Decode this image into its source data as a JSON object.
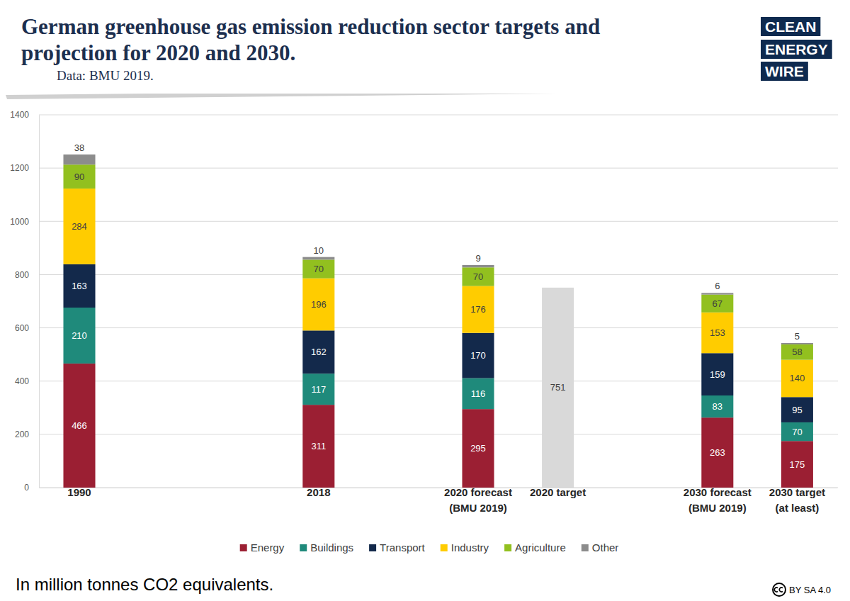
{
  "chart_data": {
    "type": "bar",
    "title": "German greenhouse gas emission reduction sector targets and\nprojection for 2020 and 2030.",
    "subtitle": "Data: BMU 2019.",
    "logo": [
      "CLEAN",
      "ENERGY",
      "WIRE"
    ],
    "note": "In million tonnes CO2 equivalents.",
    "license": "BY SA 4.0",
    "categories": [
      "1990",
      null,
      null,
      "2018",
      null,
      "2020 forecast\n(BMU 2019)",
      "2020 target",
      null,
      "2030 forecast\n(BMU 2019)",
      "2030 target\n(at least)"
    ],
    "series": [
      {
        "name": "Energy",
        "color": "#9b1f33",
        "values": [
          466,
          null,
          null,
          311,
          null,
          295,
          null,
          null,
          263,
          175
        ]
      },
      {
        "name": "Buildings",
        "color": "#1f8a7b",
        "values": [
          210,
          null,
          null,
          117,
          null,
          116,
          null,
          null,
          83,
          70
        ]
      },
      {
        "name": "Transport",
        "color": "#13294b",
        "values": [
          163,
          null,
          null,
          162,
          null,
          170,
          null,
          null,
          159,
          95
        ]
      },
      {
        "name": "Industry",
        "color": "#ffcc00",
        "values": [
          284,
          null,
          null,
          196,
          null,
          176,
          null,
          null,
          153,
          140
        ]
      },
      {
        "name": "Agriculture",
        "color": "#92c01f",
        "values": [
          90,
          null,
          null,
          70,
          null,
          70,
          null,
          null,
          67,
          58
        ]
      },
      {
        "name": "Other",
        "color": "#8c8c8c",
        "values": [
          38,
          null,
          null,
          10,
          null,
          9,
          null,
          null,
          6,
          5
        ]
      },
      {
        "color": "#d9d9d9",
        "values": [
          null,
          null,
          null,
          null,
          null,
          null,
          751,
          null,
          null,
          null
        ]
      }
    ],
    "ylim": [
      0,
      1400
    ],
    "yticks": [
      0,
      200,
      400,
      600,
      800,
      1000,
      1200,
      1400
    ],
    "grid": true,
    "stacked": true,
    "data_labels": true,
    "legend": "bottom"
  }
}
